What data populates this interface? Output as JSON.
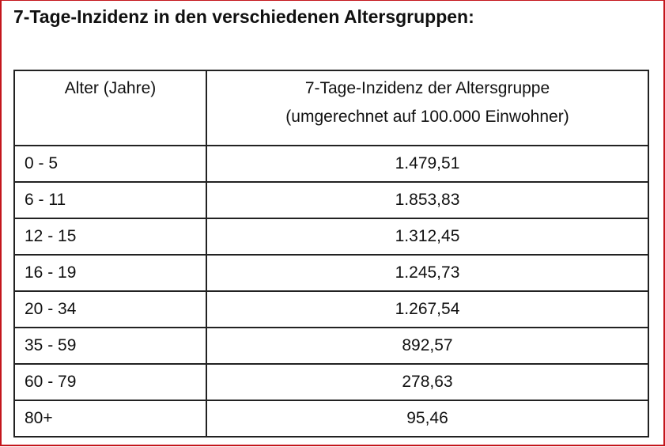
{
  "title": "7-Tage-Inzidenz in den verschiedenen Altersgruppen:",
  "table": {
    "headers": [
      "Alter (Jahre)",
      "7-Tage-Inzidenz der Altersgruppe",
      "(umgerechnet auf 100.000 Einwohner)"
    ],
    "rows": [
      {
        "age": "0 - 5",
        "value": "1.479,51"
      },
      {
        "age": "6 - 11",
        "value": "1.853,83"
      },
      {
        "age": "12 - 15",
        "value": "1.312,45"
      },
      {
        "age": "16 - 19",
        "value": "1.245,73"
      },
      {
        "age": "20 - 34",
        "value": "1.267,54"
      },
      {
        "age": "35 - 59",
        "value": "892,57"
      },
      {
        "age": "60 - 79",
        "value": "278,63"
      },
      {
        "age": "80+",
        "value": "95,46"
      }
    ]
  },
  "colors": {
    "frame": "#c4161c",
    "grid": "#222222"
  }
}
